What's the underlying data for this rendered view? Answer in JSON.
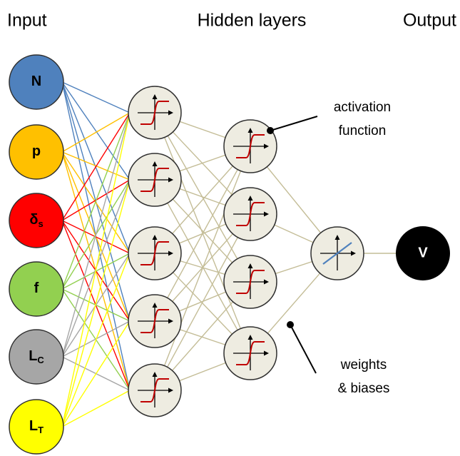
{
  "headers": {
    "input": "Input",
    "hidden": "Hidden layers",
    "output": "Output"
  },
  "input_nodes": [
    {
      "label": "N"
    },
    {
      "label": "p"
    },
    {
      "label": "δ",
      "sub": "s"
    },
    {
      "label": "f"
    },
    {
      "label": "L",
      "sub": "C"
    },
    {
      "label": "L",
      "sub": "T"
    }
  ],
  "output_node": {
    "label": "V"
  },
  "annotations": {
    "activation": [
      "activation",
      "function"
    ],
    "weights": [
      "weights",
      "& biases"
    ]
  }
}
